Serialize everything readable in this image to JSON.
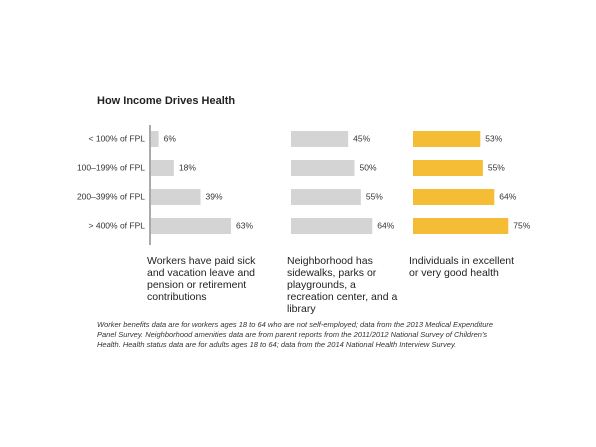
{
  "chart_data": {
    "type": "bar",
    "orientation": "horizontal",
    "title": "How Income Drives Health",
    "categories": [
      "< 100% of FPL",
      "100–199% of FPL",
      "200–399% of FPL",
      "> 400% of FPL"
    ],
    "series": [
      {
        "name": "Workers have paid sick and vacation leave and pension or retirement contributions",
        "color": "#d4d4d4",
        "values": [
          6,
          18,
          39,
          63
        ],
        "value_labels": [
          "6%",
          "18%",
          "39%",
          "63%"
        ]
      },
      {
        "name": "Neighborhood has sidewalks, parks or playgrounds, a recreation center, and a library",
        "color": "#d4d4d4",
        "values": [
          45,
          50,
          55,
          64
        ],
        "value_labels": [
          "45%",
          "50%",
          "55%",
          "64%"
        ]
      },
      {
        "name": "Individuals in excellent or very good health",
        "color": "#f5bd35",
        "values": [
          53,
          55,
          64,
          75
        ],
        "value_labels": [
          "53%",
          "55%",
          "64%",
          "75%"
        ]
      }
    ],
    "note": "Worker benefits data are for workers ages 18 to 64 who are not self-employed; data from the 2013 Medical Expenditure Panel Survey. Neighborhood amenities data are from parent reports from the 2011/2012 National Survey of Children's Health. Health status data are for adults ages 18 to 64; data from the 2014 National Health Interview Survey."
  }
}
